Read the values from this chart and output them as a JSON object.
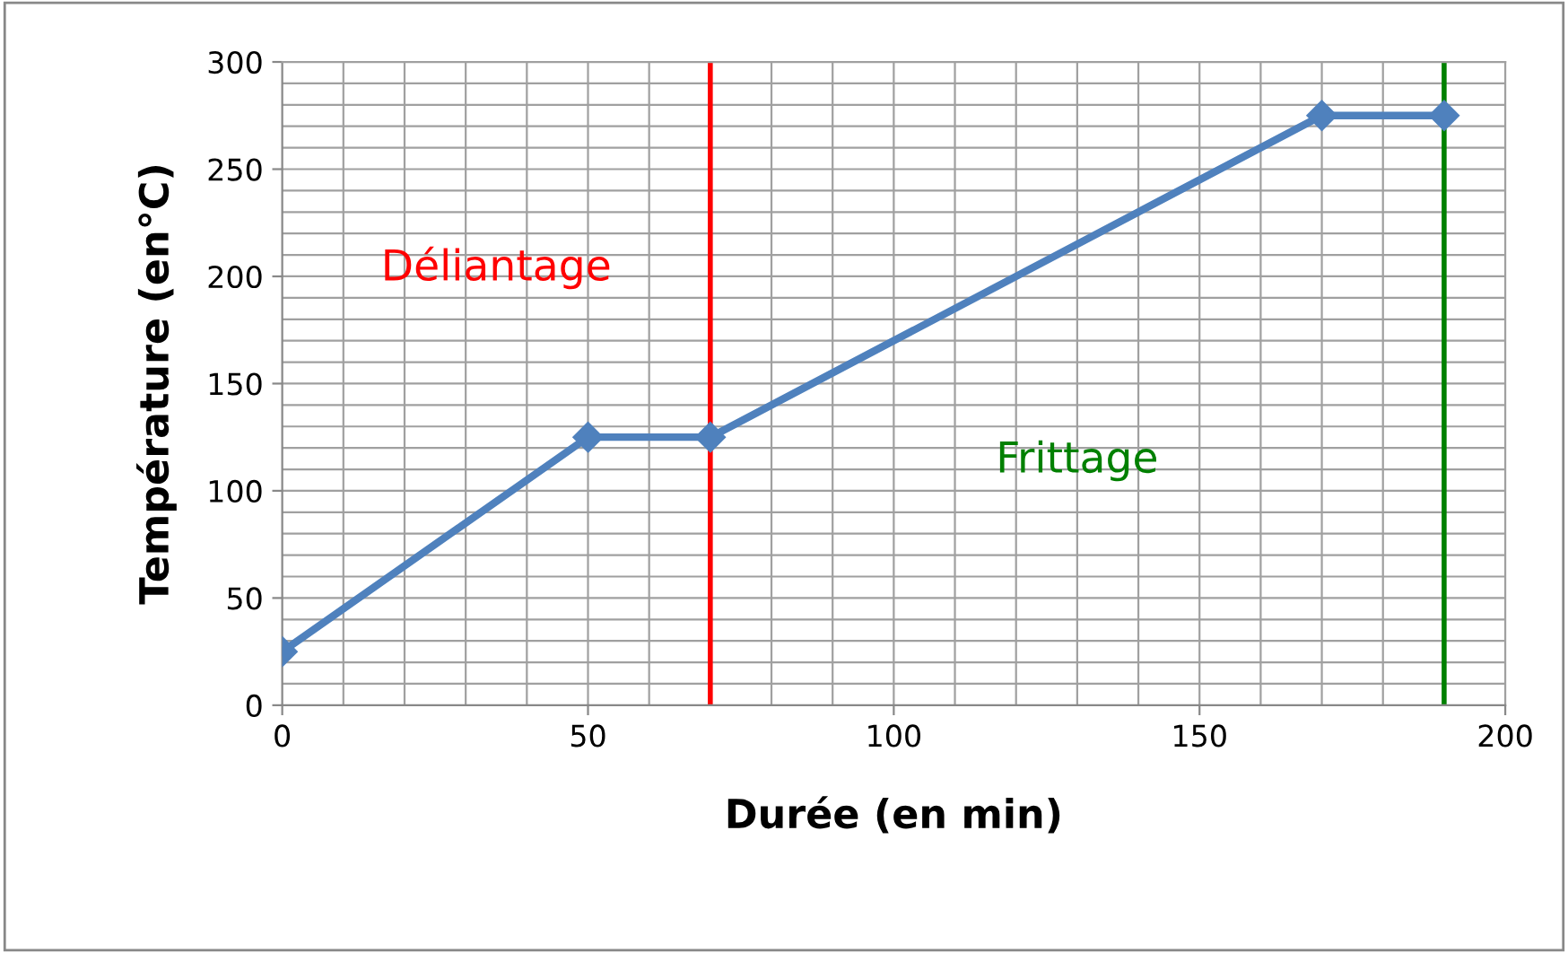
{
  "chart_data": {
    "type": "line",
    "xlabel": "Durée (en min)",
    "ylabel": "Température (en°C)",
    "x": [
      0,
      50,
      70,
      170,
      190
    ],
    "series": [
      {
        "color": "#4f81bd",
        "values": [
          25,
          125,
          125,
          275,
          275
        ]
      }
    ],
    "xlim": [
      0,
      200
    ],
    "ylim": [
      0,
      300
    ],
    "xticks": [
      0,
      50,
      100,
      150,
      200
    ],
    "yticks": [
      0,
      50,
      100,
      150,
      200,
      250,
      300
    ],
    "grid": true,
    "marker": "diamond",
    "line_style": "solid",
    "ref_lines": [
      {
        "axis": "x",
        "value": 70,
        "label": "Déliantage",
        "color": "#ff0000"
      },
      {
        "axis": "x",
        "value": 190,
        "label": "Frittage",
        "color": "#008000"
      }
    ]
  }
}
